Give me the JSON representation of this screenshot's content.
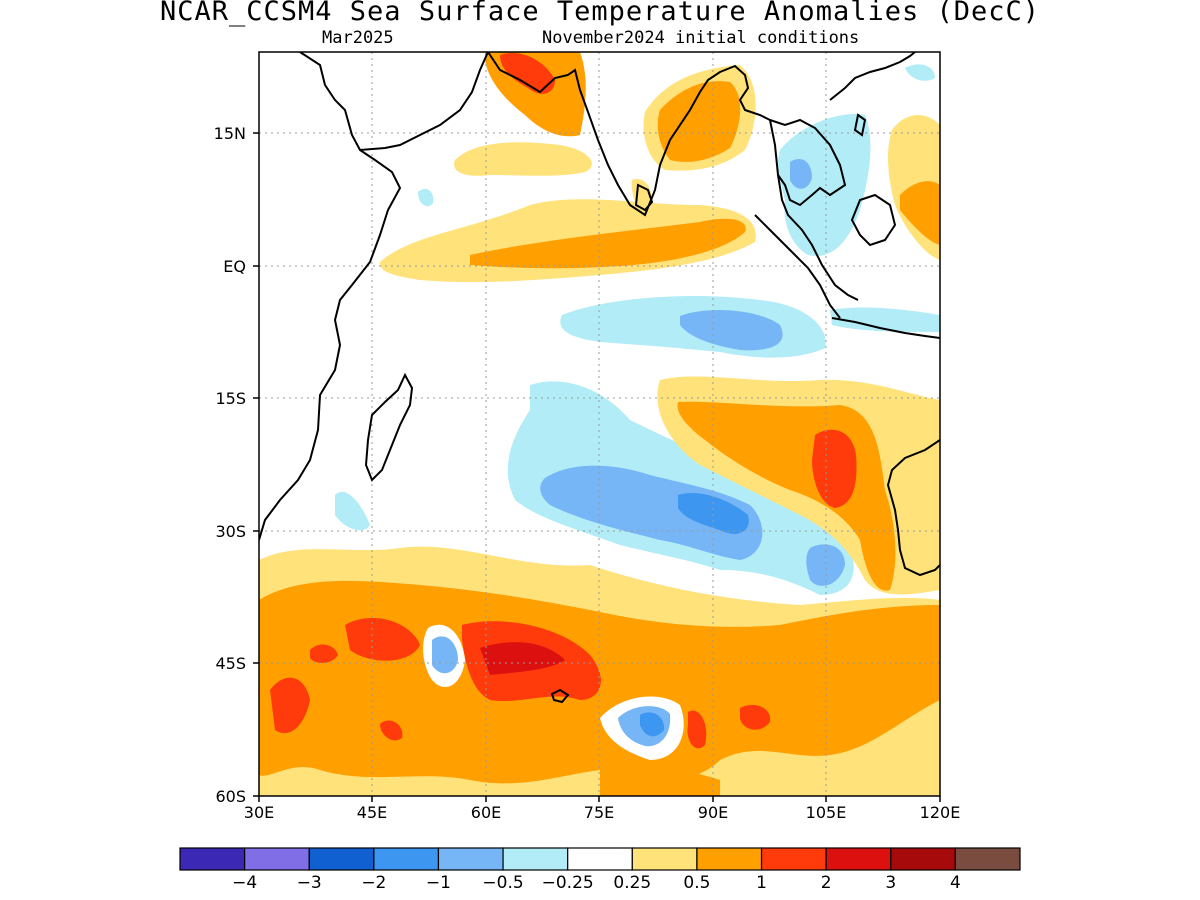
{
  "title": "NCAR_CCSM4 Sea Surface Temperature Anomalies (DecC)",
  "subtitle_left": "Mar2025",
  "subtitle_right": "November2024 initial conditions",
  "lat_labels": [
    "15N",
    "EQ",
    "15S",
    "30S",
    "45S",
    "60S"
  ],
  "lon_labels": [
    "30E",
    "45E",
    "60E",
    "75E",
    "90E",
    "105E",
    "120E"
  ],
  "colorbar": {
    "labels": [
      "−4",
      "−3",
      "−2",
      "−1",
      "−0.5",
      "−0.25",
      "0.25",
      "0.5",
      "1",
      "2",
      "3",
      "4"
    ],
    "colors": [
      "#3b28b4",
      "#7f6ee6",
      "#1060d2",
      "#3d96f0",
      "#76b6f7",
      "#b2ecf7",
      "#ffffff",
      "#ffe27a",
      "#ff9f00",
      "#ff3a0b",
      "#dd1010",
      "#a60a0a",
      "#7a4c40"
    ]
  },
  "palette": {
    "land_outline": "#000000",
    "grid": "#9a9a9a"
  }
}
